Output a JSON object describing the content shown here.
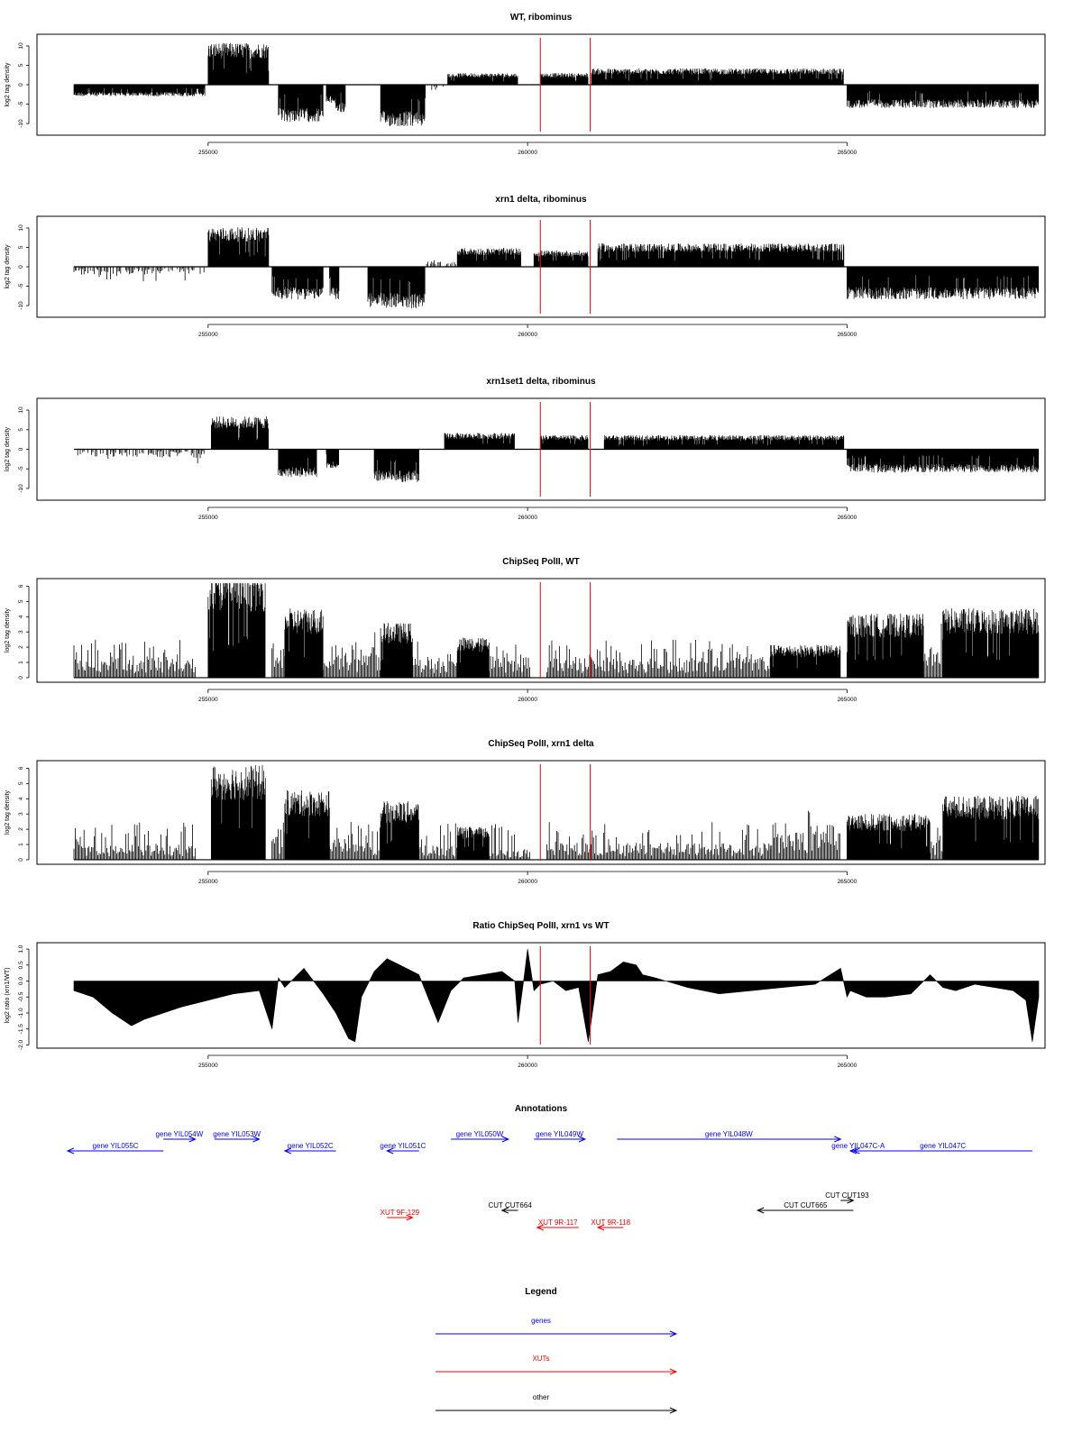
{
  "figure": {
    "x_range": [
      252900,
      268000
    ],
    "x_ticks": [
      255000,
      260000,
      265000
    ],
    "red_markers": [
      260200,
      260980
    ],
    "colors": {
      "data": "#000000",
      "marker": "#ff0000",
      "gene": "#0000ff",
      "xut": "#ff0000",
      "other": "#000000",
      "axis": "#000000"
    }
  },
  "chart_data": [
    {
      "type": "bar",
      "title": "WT, ribominus",
      "ylabel": "log2 tag density",
      "ylim": [
        -13,
        13
      ],
      "y_ticks": [
        -10,
        -5,
        0,
        5,
        10
      ],
      "y_tick_labels": [
        "-10",
        "-5",
        "0",
        "5",
        "10"
      ],
      "segments": [
        {
          "start": 252900,
          "end": 254950,
          "value": -2.5
        },
        {
          "start": 255000,
          "end": 255950,
          "value": 9
        },
        {
          "start": 256100,
          "end": 256800,
          "value": -8
        },
        {
          "start": 256850,
          "end": 257000,
          "value": -4
        },
        {
          "start": 257000,
          "end": 257150,
          "value": -6
        },
        {
          "start": 257700,
          "end": 258400,
          "value": -9
        },
        {
          "start": 258500,
          "end": 258750,
          "value": -1
        },
        {
          "start": 258750,
          "end": 259850,
          "value": 2.5
        },
        {
          "start": 260200,
          "end": 260950,
          "value": 2.5
        },
        {
          "start": 261000,
          "end": 264950,
          "value": 3.5
        },
        {
          "start": 265000,
          "end": 268000,
          "value": -5
        }
      ]
    },
    {
      "type": "bar",
      "title": "xrn1 delta, ribominus",
      "ylabel": "log2 tag density",
      "ylim": [
        -13,
        13
      ],
      "y_ticks": [
        -10,
        -5,
        0,
        5,
        10
      ],
      "y_tick_labels": [
        "-10",
        "-5",
        "0",
        "5",
        "10"
      ],
      "segments": [
        {
          "start": 252900,
          "end": 254950,
          "value": -1.5
        },
        {
          "start": 255000,
          "end": 255950,
          "value": 8.5
        },
        {
          "start": 256000,
          "end": 256800,
          "value": -7
        },
        {
          "start": 256900,
          "end": 257050,
          "value": -7
        },
        {
          "start": 257500,
          "end": 258400,
          "value": -9
        },
        {
          "start": 258400,
          "end": 258900,
          "value": 1
        },
        {
          "start": 258900,
          "end": 259900,
          "value": 4
        },
        {
          "start": 260100,
          "end": 260950,
          "value": 3.5
        },
        {
          "start": 261100,
          "end": 264950,
          "value": 5
        },
        {
          "start": 265000,
          "end": 268000,
          "value": -7
        }
      ]
    },
    {
      "type": "bar",
      "title": "xrn1set1 delta, ribominus",
      "ylabel": "log2 tag density",
      "ylim": [
        -13,
        13
      ],
      "y_ticks": [
        -10,
        -5,
        0,
        5,
        10
      ],
      "y_tick_labels": [
        "-10",
        "-5",
        "0",
        "5",
        "10"
      ],
      "segments": [
        {
          "start": 252900,
          "end": 254950,
          "value": -1.5
        },
        {
          "start": 255050,
          "end": 255950,
          "value": 7
        },
        {
          "start": 256100,
          "end": 256700,
          "value": -6
        },
        {
          "start": 256850,
          "end": 257050,
          "value": -4
        },
        {
          "start": 257600,
          "end": 258300,
          "value": -7
        },
        {
          "start": 258700,
          "end": 259800,
          "value": 3.5
        },
        {
          "start": 260200,
          "end": 260950,
          "value": 3
        },
        {
          "start": 261200,
          "end": 264950,
          "value": 3
        },
        {
          "start": 265000,
          "end": 268000,
          "value": -5
        }
      ]
    },
    {
      "type": "bar",
      "title": "ChipSeq PolII, WT",
      "ylabel": "log2 tag density",
      "ylim": [
        -0.3,
        6.5
      ],
      "y_ticks": [
        0,
        1,
        2,
        3,
        4,
        5,
        6
      ],
      "y_tick_labels": [
        "0",
        "1",
        "2",
        "3",
        "4",
        "5",
        "6"
      ],
      "segments": [
        {
          "start": 252900,
          "end": 254800,
          "value": 1
        },
        {
          "start": 255000,
          "end": 255900,
          "value": 5.8
        },
        {
          "start": 256000,
          "end": 256200,
          "value": 1.5
        },
        {
          "start": 256200,
          "end": 256800,
          "value": 3.8
        },
        {
          "start": 256800,
          "end": 257700,
          "value": 1.2
        },
        {
          "start": 257700,
          "end": 258200,
          "value": 3
        },
        {
          "start": 258200,
          "end": 258900,
          "value": 1
        },
        {
          "start": 258900,
          "end": 259400,
          "value": 2.2
        },
        {
          "start": 259400,
          "end": 260050,
          "value": 1
        },
        {
          "start": 260300,
          "end": 263800,
          "value": 1
        },
        {
          "start": 263800,
          "end": 264900,
          "value": 1.8
        },
        {
          "start": 265000,
          "end": 266200,
          "value": 3.5
        },
        {
          "start": 266200,
          "end": 266500,
          "value": 1.5
        },
        {
          "start": 266500,
          "end": 268000,
          "value": 3.8
        }
      ]
    },
    {
      "type": "bar",
      "title": "ChipSeq PolII, xrn1 delta",
      "ylabel": "log2 tag density",
      "ylim": [
        -0.3,
        6.5
      ],
      "y_ticks": [
        0,
        1,
        2,
        3,
        4,
        5,
        6
      ],
      "y_tick_labels": [
        "0",
        "1",
        "2",
        "3",
        "4",
        "5",
        "6"
      ],
      "segments": [
        {
          "start": 252900,
          "end": 254800,
          "value": 0.7
        },
        {
          "start": 255050,
          "end": 255900,
          "value": 5.2
        },
        {
          "start": 256000,
          "end": 256200,
          "value": 1.2
        },
        {
          "start": 256200,
          "end": 256900,
          "value": 3.8
        },
        {
          "start": 256900,
          "end": 257700,
          "value": 1
        },
        {
          "start": 257700,
          "end": 258300,
          "value": 3.2
        },
        {
          "start": 258300,
          "end": 258900,
          "value": 0.7
        },
        {
          "start": 258900,
          "end": 259400,
          "value": 1.8
        },
        {
          "start": 259400,
          "end": 260050,
          "value": 0.5
        },
        {
          "start": 260300,
          "end": 263800,
          "value": 0.8
        },
        {
          "start": 263800,
          "end": 264900,
          "value": 1.3
        },
        {
          "start": 265000,
          "end": 266300,
          "value": 2.5
        },
        {
          "start": 266300,
          "end": 266500,
          "value": 1
        },
        {
          "start": 266500,
          "end": 268000,
          "value": 3.5
        }
      ]
    },
    {
      "type": "area",
      "title": "Ratio ChipSeq PolII, xrn1 vs WT",
      "ylabel": "log2 ratio (xrn1/WT)",
      "ylim": [
        -2.1,
        1.2
      ],
      "y_ticks": [
        -2,
        -1.5,
        -1,
        -0.5,
        0,
        0.5,
        1
      ],
      "y_tick_labels": [
        "-2.0",
        "-1.5",
        "-1.0",
        "-0.5",
        "0.0",
        "0.5",
        "1.0"
      ],
      "x": [
        252900,
        253200,
        253500,
        253800,
        254000,
        254300,
        254600,
        255000,
        255400,
        255800,
        256000,
        256100,
        256200,
        256500,
        256800,
        257000,
        257200,
        257300,
        257400,
        257600,
        257800,
        258000,
        258300,
        258600,
        258800,
        259000,
        259300,
        259600,
        259800,
        259850,
        259950,
        260000,
        260100,
        260200,
        260400,
        260600,
        260800,
        260950,
        261100,
        261300,
        261500,
        261700,
        261800,
        262000,
        262500,
        263000,
        263500,
        264000,
        264500,
        264900,
        265000,
        265050,
        265300,
        265600,
        266000,
        266300,
        266500,
        266700,
        267000,
        267300,
        267600,
        267800,
        267900,
        268000
      ],
      "values": [
        -0.3,
        -0.5,
        -1.0,
        -1.4,
        -1.2,
        -1.0,
        -0.8,
        -0.6,
        -0.4,
        -0.3,
        -1.5,
        0.1,
        -0.2,
        0.4,
        -0.4,
        -1.0,
        -1.8,
        -1.9,
        -0.5,
        0.3,
        0.7,
        0.5,
        0.2,
        -1.3,
        -0.3,
        0.1,
        0.2,
        0.3,
        0.0,
        -1.3,
        0.2,
        1.0,
        -0.3,
        -0.1,
        0.0,
        -0.3,
        -0.2,
        -1.9,
        0.2,
        0.3,
        0.6,
        0.5,
        0.2,
        0.1,
        -0.2,
        -0.4,
        -0.3,
        -0.2,
        -0.1,
        0.4,
        -0.5,
        -0.3,
        -0.5,
        -0.5,
        -0.4,
        0.2,
        -0.2,
        -0.3,
        -0.1,
        -0.2,
        -0.3,
        -0.6,
        -1.9,
        -0.5
      ]
    }
  ],
  "annotations": {
    "title": "Annotations",
    "features": [
      {
        "label": "gene YIL055C",
        "start": 252800,
        "end": 254300,
        "strand": "-",
        "row": 1,
        "kind": "gene"
      },
      {
        "label": "gene YIL054W",
        "start": 254300,
        "end": 254800,
        "strand": "+",
        "row": 0,
        "kind": "gene"
      },
      {
        "label": "gene YIL053W",
        "start": 255100,
        "end": 255800,
        "strand": "+",
        "row": 0,
        "kind": "gene"
      },
      {
        "label": "gene YIL052C",
        "start": 256200,
        "end": 257000,
        "strand": "-",
        "row": 1,
        "kind": "gene"
      },
      {
        "label": "gene YIL051C",
        "start": 257800,
        "end": 258300,
        "strand": "-",
        "row": 1,
        "kind": "gene"
      },
      {
        "label": "gene YIL050W",
        "start": 258800,
        "end": 259700,
        "strand": "+",
        "row": 0,
        "kind": "gene"
      },
      {
        "label": "gene YIL049W",
        "start": 260100,
        "end": 260900,
        "strand": "+",
        "row": 0,
        "kind": "gene"
      },
      {
        "label": "gene YIL048W",
        "start": 261400,
        "end": 264900,
        "strand": "+",
        "row": 0,
        "kind": "gene"
      },
      {
        "label": "gene YIL047C-A",
        "start": 265050,
        "end": 265300,
        "strand": "-",
        "row": 1,
        "kind": "gene"
      },
      {
        "label": "gene YIL047C",
        "start": 265100,
        "end": 267900,
        "strand": "-",
        "row": 1,
        "kind": "gene"
      },
      {
        "label": "XUT 9F-129",
        "start": 257800,
        "end": 258200,
        "strand": "+",
        "row": 5,
        "kind": "xut"
      },
      {
        "label": "CUT CUT664",
        "start": 259600,
        "end": 259850,
        "strand": "-",
        "row": 4,
        "kind": "other"
      },
      {
        "label": "XUT 9R-117",
        "start": 260150,
        "end": 260800,
        "strand": "-",
        "row": 6,
        "kind": "xut"
      },
      {
        "label": "XUT 9R-118",
        "start": 261100,
        "end": 261500,
        "strand": "-",
        "row": 6,
        "kind": "xut"
      },
      {
        "label": "CUT CUT665",
        "start": 263600,
        "end": 265100,
        "strand": "-",
        "row": 4,
        "kind": "other"
      },
      {
        "label": "CUT CUT193",
        "start": 264900,
        "end": 265100,
        "strand": "+",
        "row": 3,
        "kind": "other"
      }
    ]
  },
  "legend": {
    "title": "Legend",
    "items": [
      {
        "label": "genes",
        "kind": "gene"
      },
      {
        "label": "XUTs",
        "kind": "xut"
      },
      {
        "label": "other",
        "kind": "other"
      }
    ]
  }
}
